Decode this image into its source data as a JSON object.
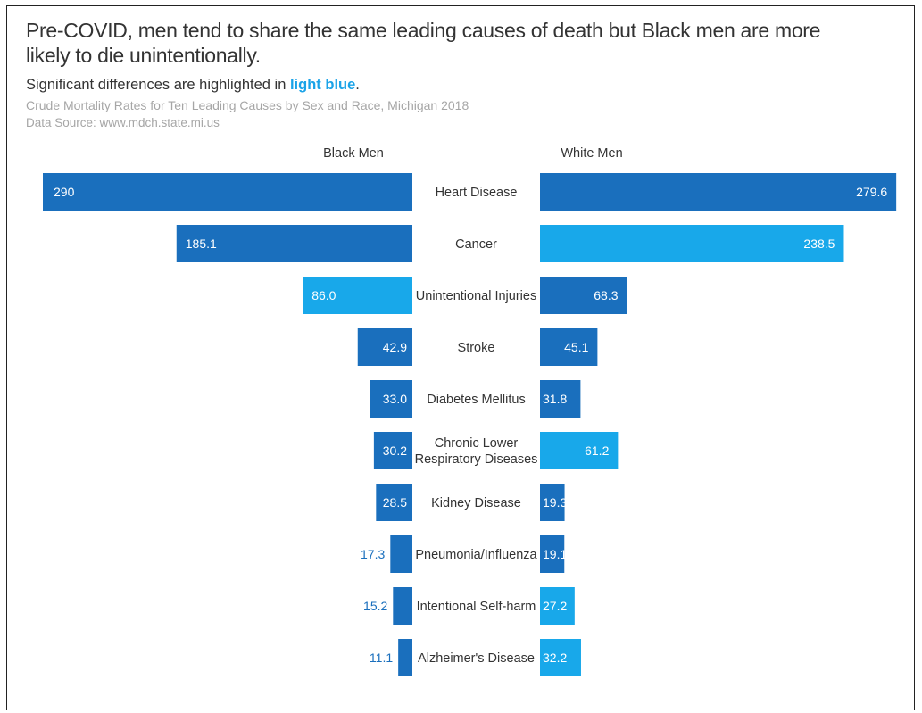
{
  "title": "Pre-COVID, men tend to share the same leading causes of death but Black men are more likely to die unintentionally.",
  "subtitle_prefix": "Significant differences are highlighted in ",
  "subtitle_highlight": "light blue",
  "subtitle_suffix": ".",
  "subtitle2": "Crude Mortality Rates for Ten Leading Causes by Sex and Race, Michigan 2018",
  "source": "Data Source: www.mdch.state.mi.us",
  "colors": {
    "dark_blue": "#1a6fbd",
    "light_blue": "#18a8ea",
    "text": "#333333",
    "value_outside": "#1a6fbd"
  },
  "chart_data": {
    "type": "bar",
    "orientation": "horizontal-butterfly",
    "categories": [
      "Heart Disease",
      "Cancer",
      "Unintentional Injuries",
      "Stroke",
      "Diabetes Mellitus",
      "Chronic Lower Respiratory Diseases",
      "Kidney Disease",
      "Pneumonia/Influenza",
      "Intentional Self-harm",
      "Alzheimer's Disease"
    ],
    "series": [
      {
        "name": "Black Men",
        "values": [
          290,
          185.1,
          86.0,
          42.9,
          33.0,
          30.2,
          28.5,
          17.3,
          15.2,
          11.1
        ],
        "labels": [
          "290",
          "185.1",
          "86.0",
          "42.9",
          "33.0",
          "30.2",
          "28.5",
          "17.3",
          "15.2",
          "11.1"
        ],
        "highlight": [
          false,
          false,
          true,
          false,
          false,
          false,
          false,
          false,
          false,
          false
        ]
      },
      {
        "name": "White Men",
        "values": [
          279.6,
          238.5,
          68.3,
          45.1,
          31.8,
          61.2,
          19.3,
          19.1,
          27.2,
          32.2
        ],
        "labels": [
          "279.6",
          "238.5",
          "68.3",
          "45.1",
          "31.8",
          "61.2",
          "19.3",
          "19.1",
          "27.2",
          "32.2"
        ],
        "highlight": [
          false,
          true,
          false,
          false,
          false,
          true,
          false,
          false,
          true,
          true
        ]
      }
    ],
    "xlim": [
      0,
      290
    ]
  }
}
